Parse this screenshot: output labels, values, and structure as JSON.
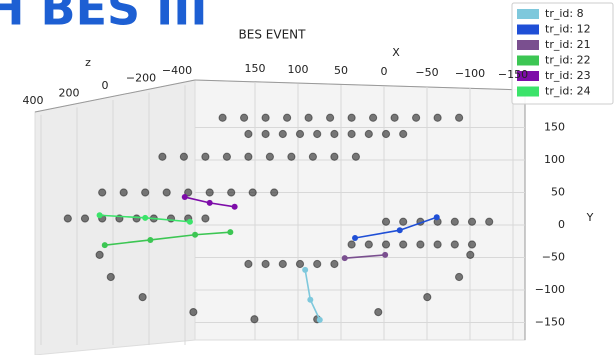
{
  "header": {
    "title": "H BES III"
  },
  "chart_data": {
    "type": "scatter3d",
    "title": "BES EVENT",
    "x_label": "X",
    "y_label": "Y",
    "z_label": "z",
    "xticks": [
      {
        "value": 150,
        "label": "150"
      },
      {
        "value": 100,
        "label": "100"
      },
      {
        "value": 50,
        "label": "50"
      },
      {
        "value": 0,
        "label": "0"
      },
      {
        "value": -50,
        "label": "−50"
      },
      {
        "value": -100,
        "label": "−100"
      },
      {
        "value": -150,
        "label": "−150"
      }
    ],
    "yticks": [
      {
        "value": 150,
        "label": "150"
      },
      {
        "value": 100,
        "label": "100"
      },
      {
        "value": 50,
        "label": "50"
      },
      {
        "value": 0,
        "label": "0"
      },
      {
        "value": -50,
        "label": "−50"
      },
      {
        "value": -100,
        "label": "−100"
      },
      {
        "value": -150,
        "label": "−150"
      }
    ],
    "zticks": [
      {
        "value": 400,
        "label": "400"
      },
      {
        "value": 200,
        "label": "200"
      },
      {
        "value": 0,
        "label": "0"
      },
      {
        "value": -200,
        "label": "−200"
      },
      {
        "value": -400,
        "label": "−400"
      }
    ],
    "legend": "upper right",
    "series": [
      {
        "color": "#333333",
        "x": [
          90,
          65,
          40,
          15,
          -10,
          -35,
          -60,
          -85,
          -110,
          -135,
          -160,
          -185,
          60,
          40,
          20,
          0,
          -20,
          -40,
          -60,
          -80,
          -100,
          -120,
          160,
          135,
          110,
          85,
          60,
          35,
          10,
          -15,
          -40,
          -65,
          230,
          205,
          180,
          155,
          130,
          105,
          80,
          55,
          30,
          270,
          250,
          230,
          210,
          190,
          170,
          150,
          130,
          110,
          -198,
          -185,
          -148,
          -91,
          -20,
          53,
          124,
          183,
          220,
          233,
          -60,
          -80,
          -100,
          -120,
          -140,
          -160,
          -180,
          -200,
          -100,
          -120,
          -140,
          -160,
          -180,
          -200,
          -220,
          60,
          40,
          20,
          0,
          -20,
          -40
        ],
        "values": [
          165,
          165,
          165,
          165,
          165,
          165,
          165,
          165,
          165,
          165,
          165,
          165,
          140,
          140,
          140,
          140,
          140,
          140,
          140,
          140,
          140,
          140,
          105,
          105,
          105,
          105,
          105,
          105,
          105,
          105,
          105,
          105,
          50,
          50,
          50,
          50,
          50,
          50,
          50,
          50,
          50,
          10,
          10,
          10,
          10,
          10,
          10,
          10,
          10,
          10,
          -46,
          -80,
          -111,
          -134,
          -145,
          -145,
          -134,
          -111,
          -80,
          -46,
          -30,
          -30,
          -30,
          -30,
          -30,
          -30,
          -30,
          -30,
          5,
          5,
          5,
          5,
          5,
          5,
          5,
          -60,
          -60,
          -60,
          -60,
          -60,
          -60
        ]
      },
      {
        "name": "tr_id: 8",
        "color": "#7ec8dc",
        "x": [
          -6,
          -12,
          -23
        ],
        "values": [
          -69,
          -115,
          -146
        ]
      },
      {
        "name": "tr_id: 12",
        "color": "#1f4fd6",
        "x": [
          -64,
          -116,
          -159
        ],
        "values": [
          -20,
          -8,
          12
        ]
      },
      {
        "name": "tr_id: 21",
        "color": "#7a4f8f",
        "x": [
          -52,
          -99
        ],
        "values": [
          -51,
          -46
        ]
      },
      {
        "name": "tr_id: 22",
        "color": "#3cc653",
        "x": [
          227,
          174,
          122,
          81
        ],
        "values": [
          -31,
          -23,
          -15,
          -11
        ]
      },
      {
        "name": "tr_id: 23",
        "color": "#7d0ca8",
        "x": [
          134,
          105,
          76
        ],
        "values": [
          43,
          34,
          28
        ]
      },
      {
        "name": "tr_id: 24",
        "color": "#3be36a",
        "x": [
          233,
          180,
          128
        ],
        "values": [
          15,
          11,
          5
        ]
      }
    ]
  }
}
